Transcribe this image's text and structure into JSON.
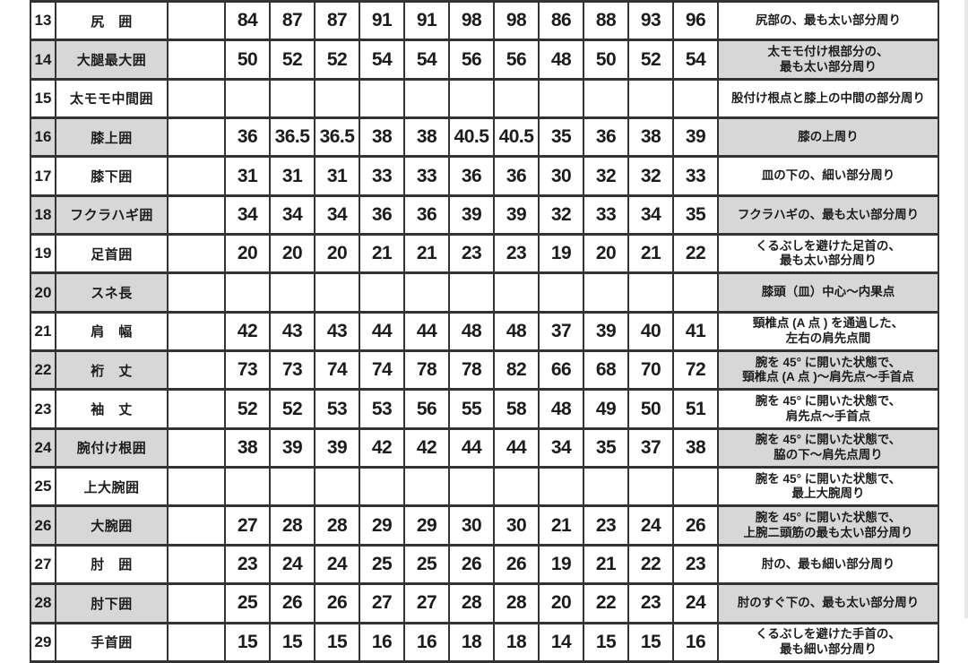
{
  "colors": {
    "column_blue": "#d5e8f1",
    "column_pink": "#f8dbe2",
    "row_gray": "#d7d7d7",
    "border": "#333333"
  },
  "table": {
    "col_colors": [
      "blue",
      "white",
      "blue",
      "white",
      "blue",
      "white",
      "blue",
      "pink",
      "white",
      "pink",
      "white"
    ],
    "rows": [
      {
        "num": "13",
        "label": "尻　囲",
        "values": [
          "84",
          "87",
          "87",
          "91",
          "91",
          "98",
          "98",
          "86",
          "88",
          "93",
          "96"
        ],
        "desc": "尻部の、最も太い部分周り",
        "shaded": false
      },
      {
        "num": "14",
        "label": "大腿最大囲",
        "values": [
          "50",
          "52",
          "52",
          "54",
          "54",
          "56",
          "56",
          "48",
          "50",
          "52",
          "54"
        ],
        "desc": "太モモ付け根部分の、\n最も太い部分周り",
        "shaded": true
      },
      {
        "num": "15",
        "label": "太モモ中間囲",
        "values": [
          "",
          "",
          "",
          "",
          "",
          "",
          "",
          "",
          "",
          "",
          ""
        ],
        "desc": "股付け根点と膝上の中間の部分周り",
        "shaded": false
      },
      {
        "num": "16",
        "label": "膝上囲",
        "values": [
          "36",
          "36.5",
          "36.5",
          "38",
          "38",
          "40.5",
          "40.5",
          "35",
          "36",
          "38",
          "39"
        ],
        "desc": "膝の上周り",
        "shaded": true
      },
      {
        "num": "17",
        "label": "膝下囲",
        "values": [
          "31",
          "31",
          "31",
          "33",
          "33",
          "36",
          "36",
          "30",
          "32",
          "32",
          "33"
        ],
        "desc": "皿の下の、細い部分周り",
        "shaded": false
      },
      {
        "num": "18",
        "label": "フクラハギ囲",
        "values": [
          "34",
          "34",
          "34",
          "36",
          "36",
          "39",
          "39",
          "32",
          "33",
          "34",
          "35"
        ],
        "desc": "フクラハギの、最も太い部分周り",
        "shaded": true
      },
      {
        "num": "19",
        "label": "足首囲",
        "values": [
          "20",
          "20",
          "20",
          "21",
          "21",
          "23",
          "23",
          "19",
          "20",
          "21",
          "22"
        ],
        "desc": "くるぶしを避けた足首の、\n最も太い部分周り",
        "shaded": false
      },
      {
        "num": "20",
        "label": "スネ長",
        "values": [
          "",
          "",
          "",
          "",
          "",
          "",
          "",
          "",
          "",
          "",
          ""
        ],
        "desc": "膝頭（皿）中心～内果点",
        "shaded": true
      },
      {
        "num": "21",
        "label": "肩　幅",
        "values": [
          "42",
          "43",
          "43",
          "44",
          "44",
          "48",
          "48",
          "37",
          "39",
          "40",
          "41"
        ],
        "desc": "頸椎点 (A 点 ) を通過した、\n左右の肩先点間",
        "shaded": false
      },
      {
        "num": "22",
        "label": "裄　丈",
        "values": [
          "73",
          "73",
          "74",
          "74",
          "78",
          "78",
          "82",
          "66",
          "68",
          "70",
          "72"
        ],
        "desc": "腕を 45° に開いた状態で、\n頸椎点 (A 点 )～肩先点～手首点",
        "shaded": true
      },
      {
        "num": "23",
        "label": "袖　丈",
        "values": [
          "52",
          "52",
          "53",
          "53",
          "56",
          "55",
          "58",
          "48",
          "49",
          "50",
          "51"
        ],
        "desc": "腕を 45° に開いた状態で、\n肩先点～手首点",
        "shaded": false
      },
      {
        "num": "24",
        "label": "腕付け根囲",
        "values": [
          "38",
          "39",
          "39",
          "42",
          "42",
          "44",
          "44",
          "34",
          "35",
          "37",
          "38"
        ],
        "desc": "腕を 45° に開いた状態で、\n脇の下～肩先点周り",
        "shaded": true
      },
      {
        "num": "25",
        "label": "上大腕囲",
        "values": [
          "",
          "",
          "",
          "",
          "",
          "",
          "",
          "",
          "",
          "",
          ""
        ],
        "desc": "腕を 45° に開いた状態で、\n最上大腕周り",
        "shaded": false
      },
      {
        "num": "26",
        "label": "大腕囲",
        "values": [
          "27",
          "28",
          "28",
          "29",
          "29",
          "30",
          "30",
          "21",
          "23",
          "24",
          "26"
        ],
        "desc": "腕を 45° に開いた状態で、\n上腕二頭筋の最も太い部分周り",
        "shaded": true
      },
      {
        "num": "27",
        "label": "肘　囲",
        "values": [
          "23",
          "24",
          "24",
          "25",
          "25",
          "26",
          "26",
          "19",
          "21",
          "22",
          "23"
        ],
        "desc": "肘の、最も細い部分周り",
        "shaded": false
      },
      {
        "num": "28",
        "label": "肘下囲",
        "values": [
          "25",
          "26",
          "26",
          "27",
          "27",
          "28",
          "28",
          "20",
          "22",
          "23",
          "24"
        ],
        "desc": "肘のすぐ下の、最も太い部分周り",
        "shaded": true
      },
      {
        "num": "29",
        "label": "手首囲",
        "values": [
          "15",
          "15",
          "15",
          "16",
          "16",
          "18",
          "18",
          "14",
          "15",
          "15",
          "16"
        ],
        "desc": "くるぶしを避けた手首の、\n最も細い部分周り",
        "shaded": false
      }
    ]
  }
}
